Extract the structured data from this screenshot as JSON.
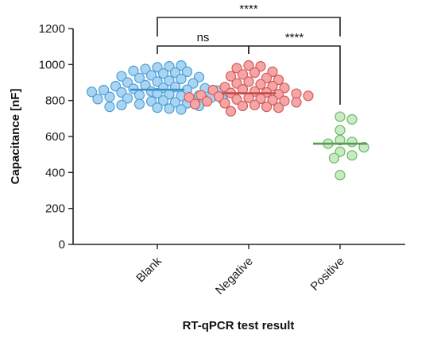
{
  "chart_data": {
    "type": "scatter",
    "xlabel": "RT-qPCR test result",
    "ylabel": "Capacitance [nF]",
    "ylim": [
      0,
      1200
    ],
    "yticks": [
      0,
      200,
      400,
      600,
      800,
      1000,
      1200
    ],
    "categories": [
      "Blank",
      "Negative",
      "Positive"
    ],
    "series": [
      {
        "category": "Blank",
        "fill": "#a9d5f2",
        "stroke": "#4a9fd6",
        "line_color": "#3d8fc4",
        "mean": 860,
        "values": [
          985,
          990,
          975,
          995,
          965,
          960,
          950,
          955,
          940,
          935,
          925,
          930,
          920,
          905,
          910,
          900,
          895,
          885,
          880,
          875,
          870,
          868,
          865,
          860,
          858,
          855,
          850,
          848,
          845,
          840,
          835,
          830,
          828,
          825,
          820,
          815,
          812,
          808,
          805,
          800,
          795,
          790,
          785,
          780,
          775,
          770,
          765,
          760,
          755,
          750
        ]
      },
      {
        "category": "Negative",
        "fill": "#f4a6a6",
        "stroke": "#d45a5a",
        "line_color": "#c44848",
        "mean": 840,
        "values": [
          995,
          990,
          980,
          960,
          955,
          945,
          935,
          925,
          915,
          905,
          895,
          890,
          880,
          875,
          870,
          862,
          858,
          850,
          845,
          842,
          838,
          835,
          830,
          826,
          822,
          818,
          815,
          810,
          806,
          802,
          798,
          795,
          790,
          785,
          780,
          775,
          770,
          765,
          760,
          740
        ]
      },
      {
        "category": "Positive",
        "fill": "#c8ebc4",
        "stroke": "#6ab865",
        "line_color": "#5a9a55",
        "mean": 560,
        "values": [
          710,
          695,
          635,
          580,
          570,
          560,
          540,
          515,
          495,
          480,
          385
        ]
      }
    ],
    "comparisons": [
      {
        "from": "Blank",
        "to": "Negative",
        "label": "ns",
        "level": 1
      },
      {
        "from": "Negative",
        "to": "Positive",
        "label": "****",
        "level": 1
      },
      {
        "from": "Blank",
        "to": "Positive",
        "label": "****",
        "level": 2
      }
    ]
  }
}
